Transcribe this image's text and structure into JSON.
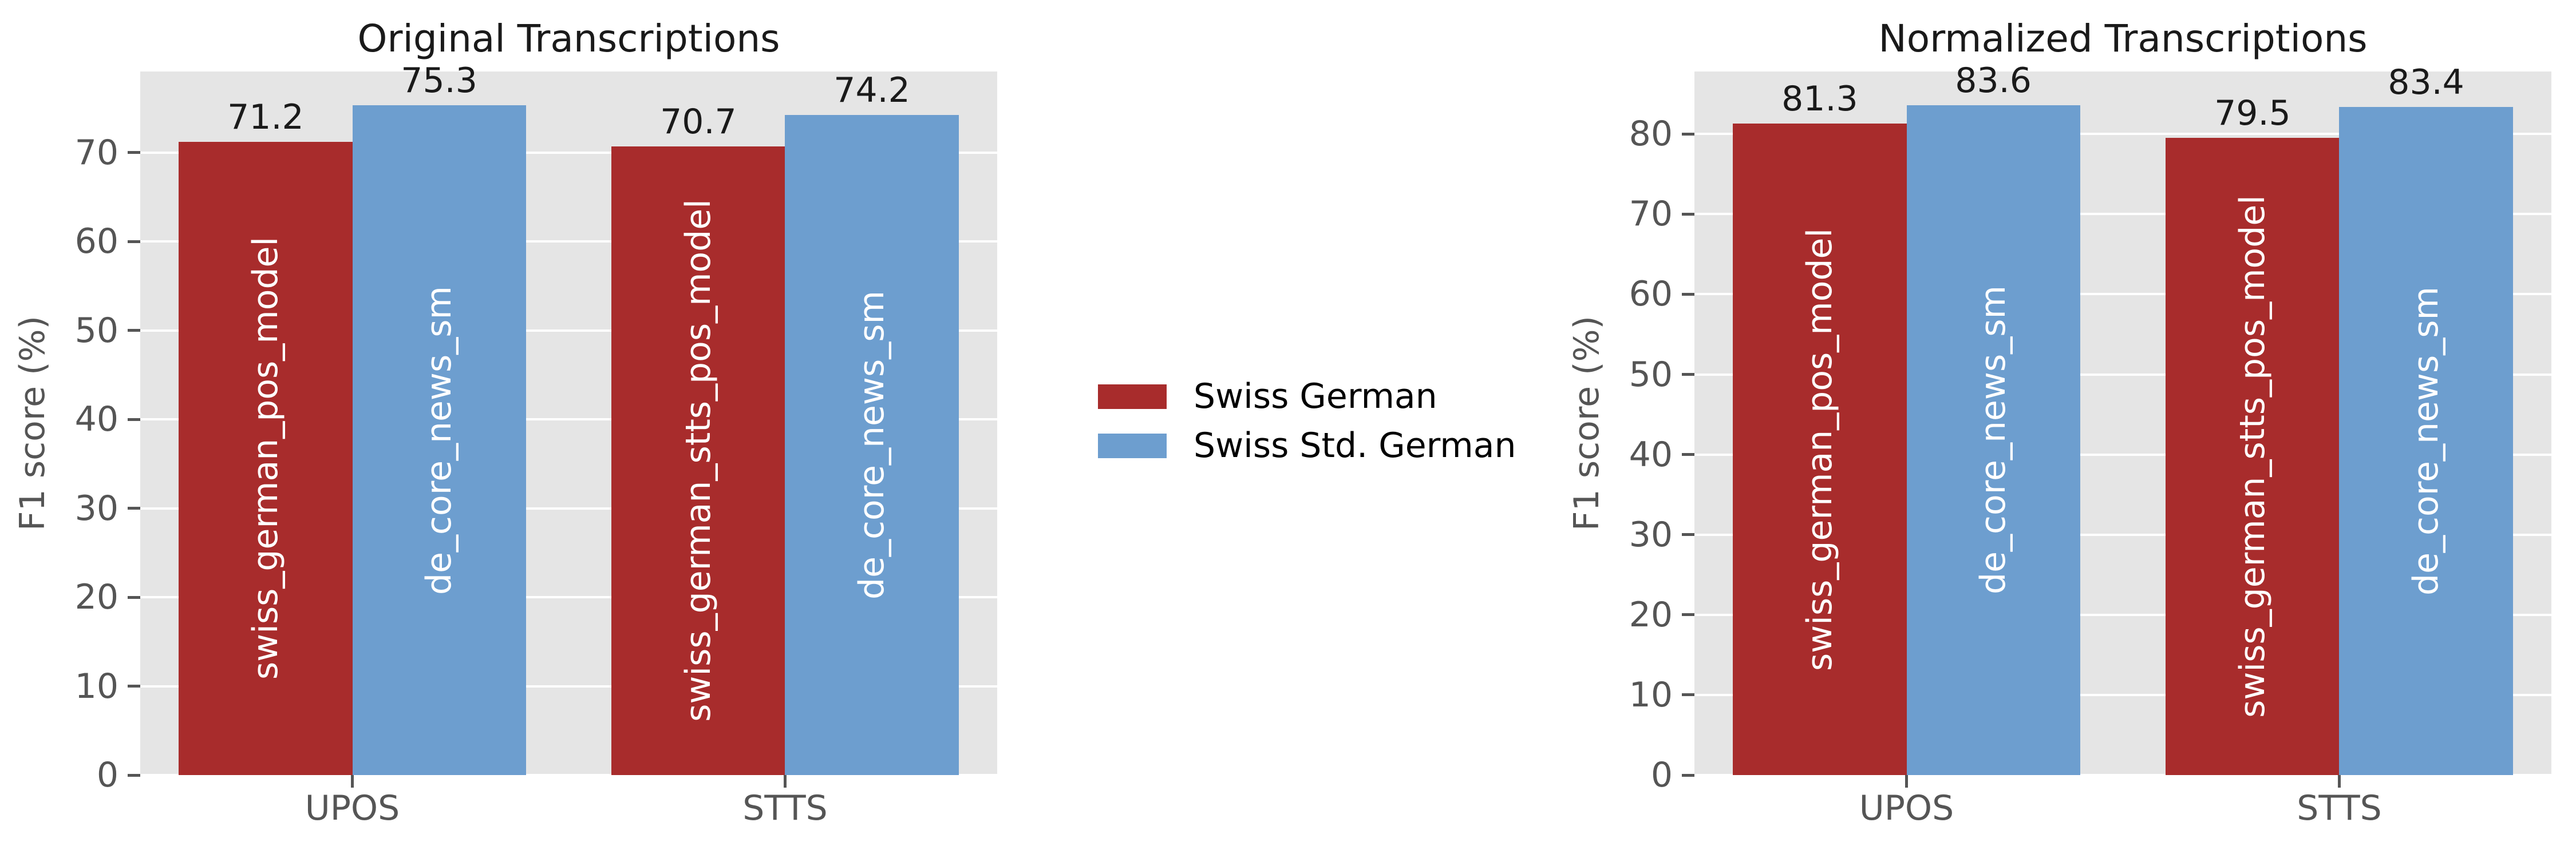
{
  "page": {
    "background": "#ffffff"
  },
  "styles": {
    "plot_background": "#e5e5e5",
    "grid_color": "#ffffff",
    "axis_text_color": "#555555",
    "title_color": "#1a1a1a",
    "value_label_color": "#1a1a1a",
    "bar_inner_label_color": "#ffffff",
    "swiss_german_color": "#a82c2c",
    "swiss_std_german_color": "#6d9ecf"
  },
  "legend": {
    "items": [
      {
        "label": "Swiss German",
        "color": "#a82c2c"
      },
      {
        "label": "Swiss Std. German",
        "color": "#6d9ecf"
      }
    ]
  },
  "chart_data": [
    {
      "type": "bar",
      "title": "Original Transcriptions",
      "ylabel": "F1 score (%)",
      "xlabel": "",
      "categories": [
        "UPOS",
        "STTS"
      ],
      "series": [
        {
          "name": "Swiss German",
          "color": "#a82c2c",
          "values": [
            71.2,
            70.7
          ],
          "bar_labels": [
            "swiss_german_pos_model",
            "swiss_german_stts_pos_model"
          ]
        },
        {
          "name": "Swiss Std. German",
          "color": "#6d9ecf",
          "values": [
            75.3,
            74.2
          ],
          "bar_labels": [
            "de_core_news_sm",
            "de_core_news_sm"
          ]
        }
      ],
      "ylim": [
        0,
        79.1
      ],
      "yticks": [
        0,
        10,
        20,
        30,
        40,
        50,
        60,
        70
      ],
      "grid": true,
      "legend_position": "center-right of figure, between the two subplots"
    },
    {
      "type": "bar",
      "title": "Normalized Transcriptions",
      "ylabel": "F1 score (%)",
      "xlabel": "",
      "categories": [
        "UPOS",
        "STTS"
      ],
      "series": [
        {
          "name": "Swiss German",
          "color": "#a82c2c",
          "values": [
            81.3,
            79.5
          ],
          "bar_labels": [
            "swiss_german_pos_model",
            "swiss_german_stts_pos_model"
          ]
        },
        {
          "name": "Swiss Std. German",
          "color": "#6d9ecf",
          "values": [
            83.6,
            83.4
          ],
          "bar_labels": [
            "de_core_news_sm",
            "de_core_news_sm"
          ]
        }
      ],
      "ylim": [
        0,
        87.8
      ],
      "yticks": [
        0,
        10,
        20,
        30,
        40,
        50,
        60,
        70,
        80
      ],
      "grid": true
    }
  ]
}
